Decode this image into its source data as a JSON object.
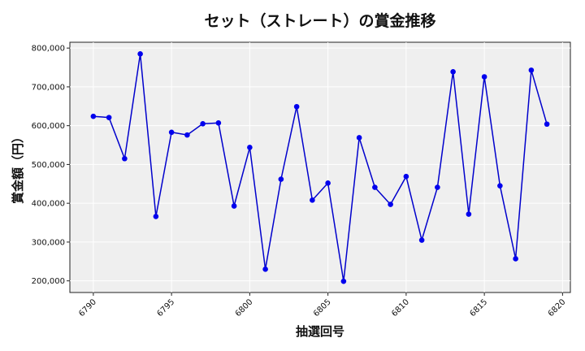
{
  "chart_data": {
    "type": "line",
    "title": "セット（ストレート）の賞金推移",
    "xlabel": "抽選回号",
    "ylabel": "賞金額（円）",
    "xlim": [
      6788.5,
      6820.5
    ],
    "ylim": [
      170000,
      815000
    ],
    "xticks": [
      6790,
      6795,
      6800,
      6805,
      6810,
      6815,
      6820
    ],
    "yticks": [
      200000,
      300000,
      400000,
      500000,
      600000,
      700000,
      800000
    ],
    "ytick_labels": [
      "200,000",
      "300,000",
      "400,000",
      "500,000",
      "600,000",
      "700,000",
      "800,000"
    ],
    "grid": true,
    "line_color": "#0000cc",
    "marker_color": "#0000ee",
    "x": [
      6790,
      6791,
      6792,
      6793,
      6794,
      6795,
      6796,
      6797,
      6798,
      6799,
      6800,
      6801,
      6802,
      6803,
      6804,
      6805,
      6806,
      6807,
      6808,
      6809,
      6810,
      6811,
      6812,
      6813,
      6814,
      6815,
      6816,
      6817,
      6818,
      6819
    ],
    "values": [
      624000,
      621000,
      515000,
      785000,
      366000,
      583000,
      576000,
      605000,
      607000,
      393000,
      544000,
      230000,
      462000,
      649000,
      408000,
      452000,
      199000,
      569000,
      441000,
      397000,
      469000,
      305000,
      441000,
      739000,
      372000,
      726000,
      445000,
      257000,
      743000,
      604000
    ]
  }
}
